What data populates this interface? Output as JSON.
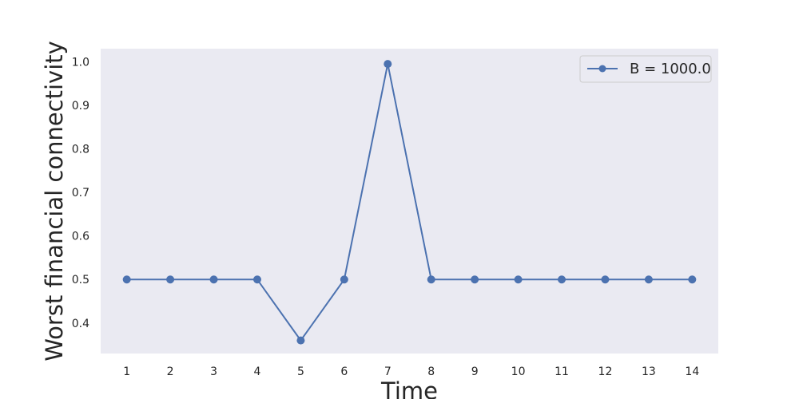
{
  "chart_data": {
    "type": "line",
    "title": "",
    "xlabel": "Time",
    "ylabel": "Worst financial connectivity",
    "x": [
      1,
      2,
      3,
      4,
      5,
      6,
      7,
      8,
      9,
      10,
      11,
      12,
      13,
      14
    ],
    "x_ticks": [
      "1",
      "2",
      "3",
      "4",
      "5",
      "6",
      "7",
      "8",
      "9",
      "10",
      "11",
      "12",
      "13",
      "14"
    ],
    "xlim": [
      0.4,
      14.6
    ],
    "ylim": [
      0.33,
      1.03
    ],
    "y_ticks": [
      0.4,
      0.5,
      0.6,
      0.7,
      0.8,
      0.9,
      1.0
    ],
    "y_tick_labels": [
      "0.4",
      "0.5",
      "0.6",
      "0.7",
      "0.8",
      "0.9",
      "1.0"
    ],
    "grid": false,
    "legend_position": "top-right",
    "series": [
      {
        "name": "B = 1000.0",
        "values": [
          0.5,
          0.5,
          0.5,
          0.5,
          0.36,
          0.5,
          0.995,
          0.5,
          0.5,
          0.5,
          0.5,
          0.5,
          0.5,
          0.5
        ],
        "color": "#4c72b0",
        "marker": "circle"
      }
    ],
    "colors": {
      "plot_background": "#eaeaf2",
      "text": "#262626"
    }
  }
}
